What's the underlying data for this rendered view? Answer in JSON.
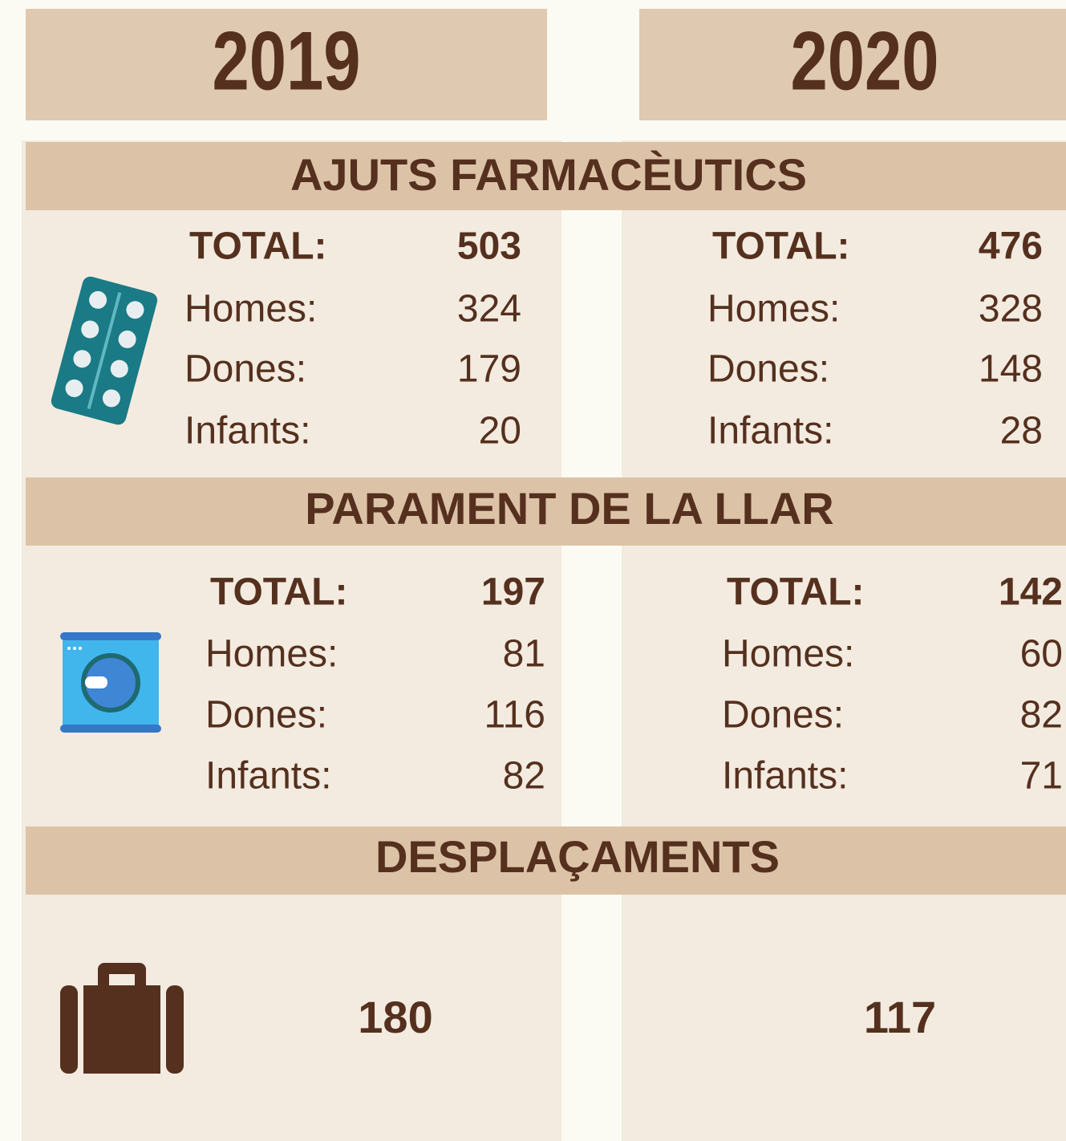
{
  "years": [
    "2019",
    "2020"
  ],
  "sections": [
    {
      "title": "AJUTS FARMACÈUTICS",
      "columns": [
        {
          "rows": [
            {
              "label": "TOTAL:",
              "value": 503
            },
            {
              "label": "Homes:",
              "value": 324
            },
            {
              "label": "Dones:",
              "value": 179
            },
            {
              "label": "Infants:",
              "value": 20
            }
          ]
        },
        {
          "rows": [
            {
              "label": "TOTAL:",
              "value": 476
            },
            {
              "label": "Homes:",
              "value": 328
            },
            {
              "label": "Dones:",
              "value": 148
            },
            {
              "label": "Infants:",
              "value": 28
            }
          ]
        }
      ]
    },
    {
      "title": "PARAMENT DE LA LLAR",
      "columns": [
        {
          "rows": [
            {
              "label": "TOTAL:",
              "value": 197
            },
            {
              "label": "Homes:",
              "value": 81
            },
            {
              "label": "Dones:",
              "value": 116
            },
            {
              "label": "Infants:",
              "value": 82
            }
          ]
        },
        {
          "rows": [
            {
              "label": "TOTAL:",
              "value": 142
            },
            {
              "label": "Homes:",
              "value": 60
            },
            {
              "label": "Dones:",
              "value": 82
            },
            {
              "label": "Infants:",
              "value": 71
            }
          ]
        }
      ]
    },
    {
      "title": "DESPLAÇAMENTS",
      "columns": [
        {
          "value": 180
        },
        {
          "value": 117
        }
      ]
    }
  ]
}
